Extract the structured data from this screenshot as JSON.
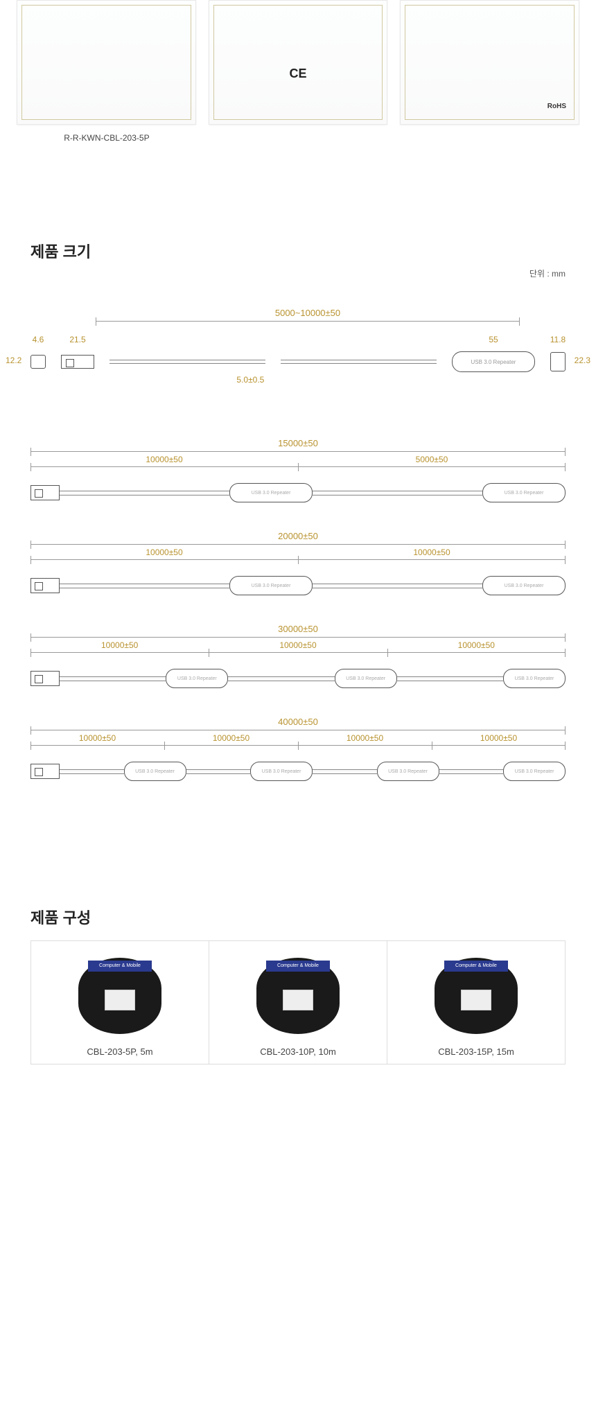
{
  "certificates": {
    "caption": "R-R-KWN-CBL-203-5P",
    "cards": [
      {
        "mark": "",
        "badge": ""
      },
      {
        "mark": "CE",
        "badge": ""
      },
      {
        "mark": "",
        "badge": "RoHS"
      }
    ]
  },
  "size_section": {
    "title": "제품 크기",
    "unit": "단위 : mm"
  },
  "detail_diagram": {
    "total_length": "5000~10000±50",
    "dims": {
      "conn_w": "4.6",
      "usb_a_w": "21.5",
      "repeater_w": "55",
      "fem_w": "11.8",
      "conn_h": "12.2",
      "fem_h": "22.3",
      "cable_d": "5.0±0.5"
    },
    "repeater_text": "USB 3.0 Repeater"
  },
  "cable_variants": [
    {
      "total": "15000±50",
      "segments": [
        "10000±50",
        "5000±50"
      ],
      "repeater_count": 2
    },
    {
      "total": "20000±50",
      "segments": [
        "10000±50",
        "10000±50"
      ],
      "repeater_count": 2
    },
    {
      "total": "30000±50",
      "segments": [
        "10000±50",
        "10000±50",
        "10000±50"
      ],
      "repeater_count": 3
    },
    {
      "total": "40000±50",
      "segments": [
        "10000±50",
        "10000±50",
        "10000±50",
        "10000±50"
      ],
      "repeater_count": 4
    }
  ],
  "repeater_text": "USB 3.0 Repeater",
  "composition_section": {
    "title": "제품 구성"
  },
  "products": [
    {
      "name": "CBL-203-5P, 5m",
      "brand": "Computer & Mobile"
    },
    {
      "name": "CBL-203-10P, 10m",
      "brand": "Computer & Mobile"
    },
    {
      "name": "CBL-203-15P, 15m",
      "brand": "Computer & Mobile"
    }
  ],
  "colors": {
    "dim_text": "#b8922e",
    "line": "#999999"
  }
}
